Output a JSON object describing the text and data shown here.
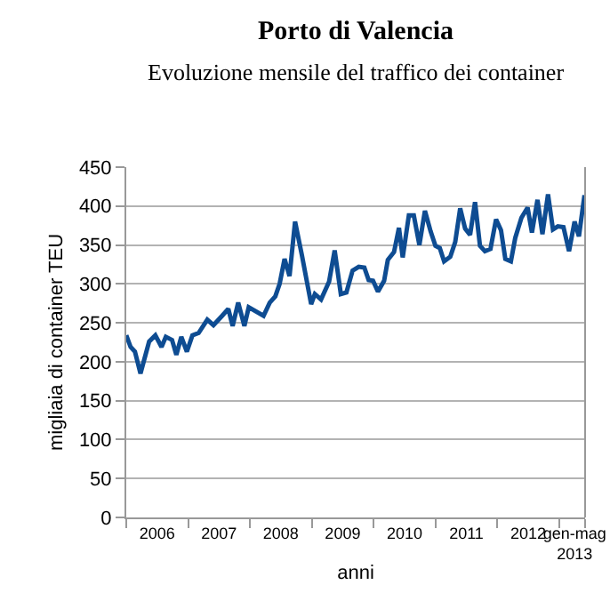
{
  "chart_data": {
    "type": "line",
    "title": "Porto di Valencia",
    "subtitle": "Evoluzione mensile del traffico dei container",
    "xlabel": "anni",
    "ylabel": "migliaia di container TEU",
    "x": [
      2006.0,
      2006.07,
      2006.14,
      2006.23,
      2006.37,
      2006.47,
      2006.57,
      2006.64,
      2006.74,
      2006.81,
      2006.89,
      2006.98,
      2007.07,
      2007.17,
      2007.31,
      2007.41,
      2007.55,
      2007.65,
      2007.72,
      2007.81,
      2007.91,
      2007.98,
      2008.22,
      2008.32,
      2008.41,
      2008.48,
      2008.56,
      2008.64,
      2008.73,
      2008.84,
      2008.99,
      2009.05,
      2009.15,
      2009.28,
      2009.37,
      2009.47,
      2009.56,
      2009.66,
      2009.76,
      2009.85,
      2009.92,
      2009.99,
      2010.07,
      2010.17,
      2010.23,
      2010.33,
      2010.41,
      2010.47,
      2010.57,
      2010.65,
      2010.74,
      2010.83,
      2010.92,
      2011.0,
      2011.07,
      2011.14,
      2011.24,
      2011.32,
      2011.4,
      2011.48,
      2011.56,
      2011.64,
      2011.72,
      2011.8,
      2011.89,
      2011.98,
      2012.06,
      2012.13,
      2012.22,
      2012.29,
      2012.39,
      2012.49,
      2012.56,
      2012.65,
      2012.73,
      2012.82,
      2012.9,
      2012.98,
      2013.07,
      2013.16,
      2013.25,
      2013.32,
      2013.41
    ],
    "series": [
      {
        "color": "#0e4c92",
        "values": [
          234,
          219,
          213,
          185,
          226,
          234,
          219,
          232,
          228,
          209,
          232,
          213,
          234,
          237,
          254,
          247,
          259,
          268,
          246,
          276,
          246,
          270,
          259,
          276,
          284,
          300,
          332,
          310,
          380,
          337,
          274,
          287,
          280,
          303,
          343,
          287,
          289,
          317,
          322,
          321,
          305,
          304,
          290,
          304,
          331,
          341,
          372,
          334,
          388,
          388,
          350,
          394,
          368,
          349,
          346,
          329,
          335,
          354,
          397,
          371,
          363,
          405,
          349,
          342,
          345,
          383,
          369,
          332,
          329,
          359,
          385,
          398,
          366,
          408,
          364,
          415,
          370,
          374,
          373,
          342,
          380,
          361,
          414
        ]
      }
    ],
    "xlim": [
      2006,
      2013.42
    ],
    "xticks": [
      {
        "value": 2006.5,
        "label": "2006"
      },
      {
        "value": 2007.5,
        "label": "2007"
      },
      {
        "value": 2008.5,
        "label": "2008"
      },
      {
        "value": 2009.5,
        "label": "2009"
      },
      {
        "value": 2010.5,
        "label": "2010"
      },
      {
        "value": 2011.5,
        "label": "2011"
      },
      {
        "value": 2012.5,
        "label": "2012"
      },
      {
        "value": 2013.25,
        "label": "gen-mag 2013"
      },
      {
        "value": 2006,
        "label": null
      },
      {
        "value": 2007,
        "label": null
      },
      {
        "value": 2008,
        "label": null
      },
      {
        "value": 2009,
        "label": null
      },
      {
        "value": 2010,
        "label": null
      },
      {
        "value": 2011,
        "label": null
      },
      {
        "value": 2012,
        "label": null
      },
      {
        "value": 2013,
        "label": null
      },
      {
        "value": 2013.42,
        "label": null
      }
    ],
    "ylim": [
      0,
      450
    ],
    "yticks": [
      0,
      50,
      100,
      150,
      200,
      250,
      300,
      350,
      400,
      450
    ],
    "grid": "y",
    "line_style": "solid"
  }
}
